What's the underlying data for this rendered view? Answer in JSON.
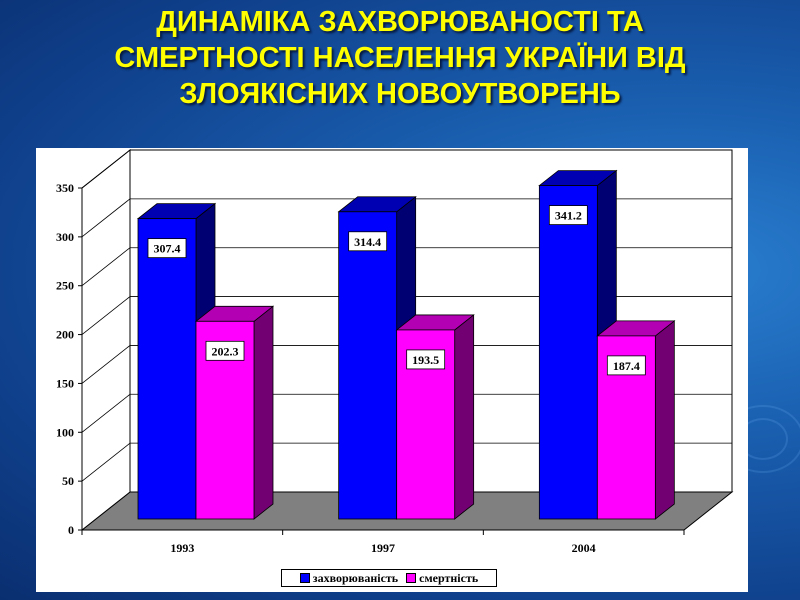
{
  "slide": {
    "title_lines": [
      "ДИНАМІКА ЗАХВОРЮВАНОСТІ ТА",
      "СМЕРТНОСТІ НАСЕЛЕННЯ УКРАЇНИ ВІД",
      "ЗЛОЯКІСНИХ НОВОУТВОРЕНЬ"
    ]
  },
  "colors": {
    "title": "#ffff00",
    "series_1": "#0000ff",
    "series_2": "#ff00ff"
  },
  "chart_data": {
    "type": "bar",
    "style": "3d-clustered",
    "categories": [
      "1993",
      "1997",
      "2004"
    ],
    "series": [
      {
        "name": "захворюваність",
        "color": "#0000ff",
        "values": [
          307.4,
          314.4,
          341.2
        ]
      },
      {
        "name": "смертність",
        "color": "#ff00ff",
        "values": [
          202.3,
          193.5,
          187.4
        ]
      }
    ],
    "ylim": [
      0,
      350
    ],
    "yticks": [
      0,
      50,
      100,
      150,
      200,
      250,
      300,
      350
    ],
    "grid": true,
    "legend": "bottom",
    "data_labels": true
  }
}
